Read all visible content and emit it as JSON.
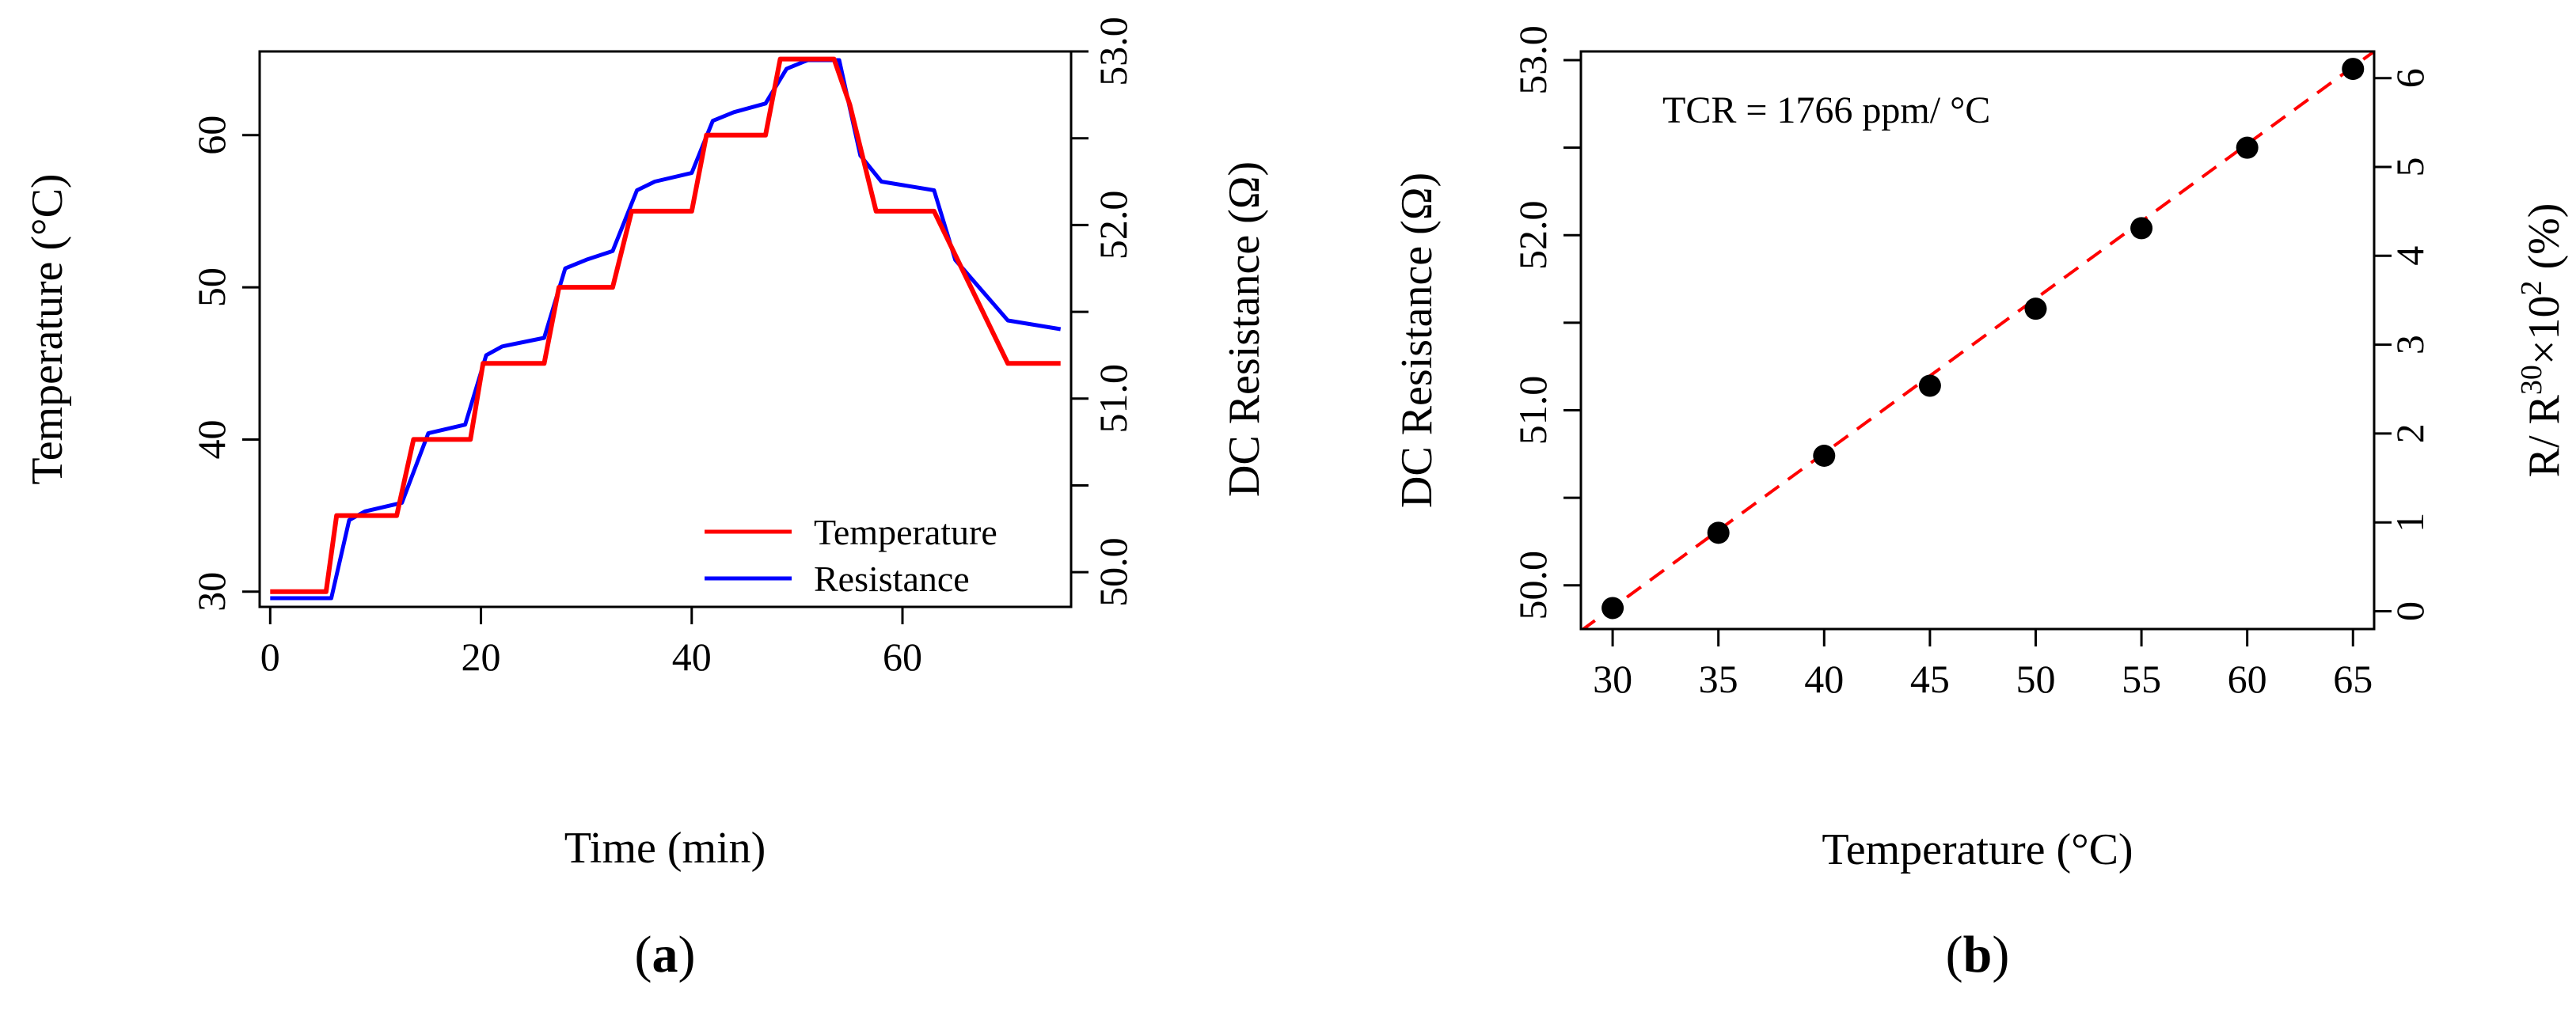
{
  "chart_data": [
    {
      "panel_label": "(a)",
      "panel_letter": "a",
      "type": "line",
      "xlabel": "Time (min)",
      "ylabel": "Temperature (°C)",
      "y2label": "DC Resistance (Ω)",
      "xlim": [
        -1,
        76
      ],
      "ylim": [
        29,
        65.5
      ],
      "y2lim": [
        49.8,
        53.0
      ],
      "x_ticks": [
        0,
        20,
        40,
        60
      ],
      "x_tick_labels": [
        "0",
        "20",
        "40",
        "60"
      ],
      "y_ticks": [
        30,
        40,
        50,
        60
      ],
      "y_tick_labels": [
        "30",
        "40",
        "50",
        "60"
      ],
      "y2_ticks": [
        50.0,
        50.5,
        51.0,
        51.5,
        52.0,
        52.5,
        53.0
      ],
      "y2_tick_labels": [
        "50.0",
        "",
        "51.0",
        "",
        "52.0",
        "",
        "53.0"
      ],
      "legend": {
        "position": "bottom-right",
        "entries": [
          {
            "label": "Temperature",
            "color": "#ff0000"
          },
          {
            "label": "Resistance",
            "color": "#0000ff"
          }
        ]
      },
      "series": [
        {
          "name": "Temperature",
          "axis": "left",
          "color": "#ff0000",
          "x": [
            0,
            5.3,
            6.3,
            12,
            13.6,
            19,
            20.2,
            26,
            27.4,
            32.5,
            34.3,
            40,
            41.4,
            47,
            48.4,
            53.5,
            55,
            57.5,
            63,
            70,
            75
          ],
          "y": [
            30,
            30,
            35,
            35,
            40,
            40,
            45,
            45,
            50,
            50,
            55,
            55,
            60,
            60,
            65,
            65,
            62,
            55,
            55,
            45,
            45
          ]
        },
        {
          "name": "Resistance",
          "axis": "right",
          "color": "#0000ff",
          "x": [
            0,
            5.8,
            7.5,
            9,
            12.5,
            15,
            18.5,
            20.5,
            22,
            26,
            28,
            30,
            32.5,
            34.8,
            36.5,
            40,
            42,
            44,
            47,
            49,
            51,
            54,
            56,
            58,
            63,
            65,
            70,
            75
          ],
          "y": [
            49.85,
            49.85,
            50.3,
            50.35,
            50.4,
            50.8,
            50.85,
            51.25,
            51.3,
            51.35,
            51.75,
            51.8,
            51.85,
            52.2,
            52.25,
            52.3,
            52.6,
            52.65,
            52.7,
            52.9,
            52.95,
            52.95,
            52.4,
            52.25,
            52.2,
            51.8,
            51.45,
            51.4
          ]
        }
      ]
    },
    {
      "panel_label": "(b)",
      "panel_letter": "b",
      "type": "scatter",
      "xlabel": "Temperature (°C)",
      "ylabel": "DC Resistance (Ω)",
      "y2label_parts": {
        "prefix": "R/ R",
        "sup1": "30",
        "mid": "×10",
        "sup2": "2",
        "suffix": " (%)"
      },
      "xlim": [
        28.5,
        66
      ],
      "ylim": [
        49.75,
        53.05
      ],
      "y2lim": [
        -0.2,
        6.3
      ],
      "x_ticks": [
        30,
        35,
        40,
        45,
        50,
        55,
        60,
        65
      ],
      "x_tick_labels": [
        "30",
        "35",
        "40",
        "45",
        "50",
        "55",
        "60",
        "65"
      ],
      "y_ticks": [
        50.0,
        50.5,
        51.0,
        51.5,
        52.0,
        52.5,
        53.0
      ],
      "y_tick_labels": [
        "50.0",
        "",
        "51.0",
        "",
        "52.0",
        "",
        "53.0"
      ],
      "y2_ticks": [
        0,
        1,
        2,
        3,
        4,
        5,
        6
      ],
      "y2_tick_labels": [
        "0",
        "1",
        "2",
        "3",
        "4",
        "5",
        "6"
      ],
      "annotation": "TCR =  1766  ppm/ °C",
      "points": {
        "x": [
          30,
          35,
          40,
          45,
          50,
          55,
          60,
          65
        ],
        "y": [
          49.87,
          50.3,
          50.74,
          51.14,
          51.58,
          52.04,
          52.5,
          52.95
        ]
      },
      "fit_line": {
        "style": "dashed",
        "color": "#ff0000",
        "x": [
          28.5,
          66
        ],
        "y": [
          49.74,
          53.05
        ]
      }
    }
  ]
}
